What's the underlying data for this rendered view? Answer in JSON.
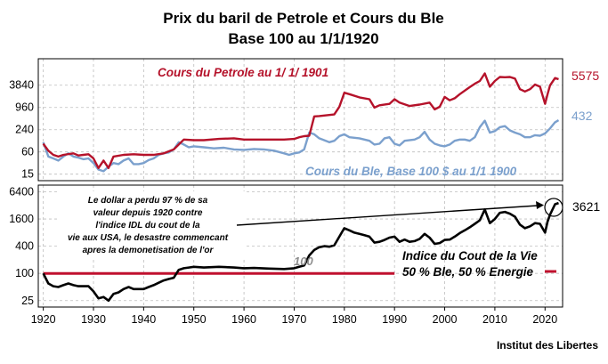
{
  "title_line1": "Prix du baril de Petrole et Cours du Ble",
  "title_line2": "Base 100 au 1/1/1920",
  "credit": "Institut des Libertes",
  "colors": {
    "petrole": "#b5122a",
    "ble": "#7ba0cd",
    "vie": "#000000",
    "ref": "#c0102e"
  },
  "chart_data": [
    {
      "type": "line",
      "yscale": "log",
      "ylim": [
        10,
        20000
      ],
      "xlim": [
        1919,
        2023.5
      ],
      "yticks": [
        "15",
        "60",
        "240",
        "960",
        "3840"
      ],
      "annotations": [
        {
          "id": "petrole",
          "text": "Cours du Petrole au 1/ 1/ 1901"
        },
        {
          "id": "ble",
          "text": "Cours du Ble, Base 100 $ au 1/1 1900"
        }
      ],
      "end_labels": [
        {
          "id": "petrole",
          "text": "5575"
        },
        {
          "id": "ble",
          "text": "432"
        }
      ],
      "series": [
        {
          "id": "petrole",
          "points": [
            [
              1920,
              100
            ],
            [
              1921,
              65
            ],
            [
              1922,
              50
            ],
            [
              1923,
              45
            ],
            [
              1924,
              50
            ],
            [
              1926,
              55
            ],
            [
              1927,
              48
            ],
            [
              1928,
              50
            ],
            [
              1929,
              52
            ],
            [
              1930,
              40
            ],
            [
              1931,
              22
            ],
            [
              1932,
              35
            ],
            [
              1933,
              22
            ],
            [
              1934,
              45
            ],
            [
              1936,
              50
            ],
            [
              1938,
              52
            ],
            [
              1940,
              50
            ],
            [
              1942,
              50
            ],
            [
              1944,
              55
            ],
            [
              1946,
              70
            ],
            [
              1947,
              95
            ],
            [
              1948,
              130
            ],
            [
              1950,
              125
            ],
            [
              1952,
              125
            ],
            [
              1955,
              135
            ],
            [
              1958,
              140
            ],
            [
              1960,
              130
            ],
            [
              1965,
              130
            ],
            [
              1968,
              130
            ],
            [
              1970,
              135
            ],
            [
              1971,
              150
            ],
            [
              1972,
              160
            ],
            [
              1973,
              165
            ],
            [
              1974,
              550
            ],
            [
              1975,
              560
            ],
            [
              1977,
              600
            ],
            [
              1978,
              620
            ],
            [
              1979,
              1000
            ],
            [
              1980,
              2400
            ],
            [
              1981,
              2200
            ],
            [
              1983,
              1800
            ],
            [
              1985,
              1600
            ],
            [
              1986,
              950
            ],
            [
              1987,
              1100
            ],
            [
              1989,
              1200
            ],
            [
              1990,
              1600
            ],
            [
              1991,
              1300
            ],
            [
              1993,
              1050
            ],
            [
              1995,
              1150
            ],
            [
              1997,
              1300
            ],
            [
              1998,
              850
            ],
            [
              1999,
              1000
            ],
            [
              2000,
              1850
            ],
            [
              2001,
              1500
            ],
            [
              2002,
              1700
            ],
            [
              2003,
              2200
            ],
            [
              2005,
              3400
            ],
            [
              2006,
              4200
            ],
            [
              2007,
              5000
            ],
            [
              2008,
              8000
            ],
            [
              2009,
              3500
            ],
            [
              2010,
              5000
            ],
            [
              2011,
              6400
            ],
            [
              2012,
              6300
            ],
            [
              2013,
              6400
            ],
            [
              2014,
              5800
            ],
            [
              2015,
              3000
            ],
            [
              2016,
              2600
            ],
            [
              2017,
              3000
            ],
            [
              2018,
              4000
            ],
            [
              2019,
              3500
            ],
            [
              2020,
              1200
            ],
            [
              2020.5,
              2200
            ],
            [
              2021,
              3800
            ],
            [
              2022,
              6000
            ],
            [
              2022.7,
              5575
            ]
          ]
        },
        {
          "id": "ble",
          "points": [
            [
              1920,
              110
            ],
            [
              1921,
              45
            ],
            [
              1922,
              40
            ],
            [
              1923,
              35
            ],
            [
              1924,
              45
            ],
            [
              1925,
              55
            ],
            [
              1926,
              45
            ],
            [
              1927,
              42
            ],
            [
              1928,
              38
            ],
            [
              1929,
              40
            ],
            [
              1930,
              30
            ],
            [
              1931,
              20
            ],
            [
              1932,
              18
            ],
            [
              1933,
              24
            ],
            [
              1934,
              30
            ],
            [
              1935,
              28
            ],
            [
              1936,
              35
            ],
            [
              1937,
              40
            ],
            [
              1938,
              28
            ],
            [
              1939,
              28
            ],
            [
              1940,
              30
            ],
            [
              1941,
              36
            ],
            [
              1942,
              40
            ],
            [
              1943,
              50
            ],
            [
              1944,
              55
            ],
            [
              1945,
              58
            ],
            [
              1946,
              70
            ],
            [
              1947,
              110
            ],
            [
              1948,
              95
            ],
            [
              1949,
              80
            ],
            [
              1950,
              85
            ],
            [
              1952,
              80
            ],
            [
              1954,
              75
            ],
            [
              1956,
              78
            ],
            [
              1958,
              70
            ],
            [
              1960,
              68
            ],
            [
              1962,
              72
            ],
            [
              1964,
              70
            ],
            [
              1966,
              65
            ],
            [
              1968,
              55
            ],
            [
              1969,
              50
            ],
            [
              1970,
              55
            ],
            [
              1971,
              58
            ],
            [
              1972,
              70
            ],
            [
              1973,
              200
            ],
            [
              1974,
              180
            ],
            [
              1975,
              140
            ],
            [
              1977,
              110
            ],
            [
              1978,
              120
            ],
            [
              1979,
              160
            ],
            [
              1980,
              180
            ],
            [
              1981,
              150
            ],
            [
              1983,
              140
            ],
            [
              1985,
              120
            ],
            [
              1986,
              95
            ],
            [
              1987,
              100
            ],
            [
              1988,
              140
            ],
            [
              1989,
              150
            ],
            [
              1990,
              100
            ],
            [
              1991,
              90
            ],
            [
              1992,
              120
            ],
            [
              1994,
              130
            ],
            [
              1995,
              150
            ],
            [
              1996,
              210
            ],
            [
              1997,
              130
            ],
            [
              1998,
              100
            ],
            [
              1999,
              90
            ],
            [
              2000,
              85
            ],
            [
              2001,
              95
            ],
            [
              2002,
              120
            ],
            [
              2003,
              130
            ],
            [
              2004,
              130
            ],
            [
              2005,
              120
            ],
            [
              2006,
              150
            ],
            [
              2007,
              280
            ],
            [
              2008,
              420
            ],
            [
              2009,
              200
            ],
            [
              2010,
              220
            ],
            [
              2011,
              280
            ],
            [
              2012,
              300
            ],
            [
              2013,
              230
            ],
            [
              2014,
              200
            ],
            [
              2015,
              180
            ],
            [
              2016,
              150
            ],
            [
              2017,
              150
            ],
            [
              2018,
              170
            ],
            [
              2019,
              165
            ],
            [
              2020,
              190
            ],
            [
              2021,
              260
            ],
            [
              2022,
              380
            ],
            [
              2022.7,
              432
            ]
          ]
        }
      ]
    },
    {
      "type": "line",
      "yscale": "log",
      "ylim": [
        18,
        9000
      ],
      "xlim": [
        1919,
        2023.5
      ],
      "yticks": [
        "25",
        "100",
        "400",
        "1600",
        "6400"
      ],
      "xticks": [
        "1920",
        "1930",
        "1940",
        "1950",
        "1960",
        "1970",
        "1980",
        "1990",
        "2000",
        "2010",
        "2020"
      ],
      "note_lines": [
        "Le dollar a perdu 97 % de sa",
        "valeur depuis 1920 contre",
        "l'indice IDL du cout de la",
        "vie aux USA, le desastre commencant",
        "apres la demonetisation  de l'or"
      ],
      "label_100": "100",
      "legend_line1": "Indice du Cout de la Vie",
      "legend_line2": "50 % Ble, 50 % Energie",
      "end_label": "3621",
      "reference_level": 100,
      "series": [
        {
          "id": "vie",
          "points": [
            [
              1920,
              100
            ],
            [
              1921,
              60
            ],
            [
              1922,
              52
            ],
            [
              1923,
              50
            ],
            [
              1924,
              55
            ],
            [
              1925,
              60
            ],
            [
              1926,
              55
            ],
            [
              1927,
              52
            ],
            [
              1928,
              52
            ],
            [
              1929,
              52
            ],
            [
              1930,
              40
            ],
            [
              1931,
              28
            ],
            [
              1932,
              30
            ],
            [
              1933,
              25
            ],
            [
              1934,
              35
            ],
            [
              1935,
              38
            ],
            [
              1936,
              45
            ],
            [
              1937,
              50
            ],
            [
              1938,
              45
            ],
            [
              1939,
              45
            ],
            [
              1940,
              45
            ],
            [
              1941,
              50
            ],
            [
              1942,
              55
            ],
            [
              1943,
              62
            ],
            [
              1944,
              70
            ],
            [
              1945,
              75
            ],
            [
              1946,
              80
            ],
            [
              1947,
              120
            ],
            [
              1948,
              130
            ],
            [
              1949,
              135
            ],
            [
              1950,
              140
            ],
            [
              1952,
              135
            ],
            [
              1955,
              140
            ],
            [
              1958,
              135
            ],
            [
              1960,
              130
            ],
            [
              1962,
              132
            ],
            [
              1965,
              128
            ],
            [
              1968,
              125
            ],
            [
              1970,
              130
            ],
            [
              1971,
              140
            ],
            [
              1972,
              150
            ],
            [
              1973,
              250
            ],
            [
              1974,
              330
            ],
            [
              1975,
              380
            ],
            [
              1976,
              400
            ],
            [
              1977,
              390
            ],
            [
              1978,
              420
            ],
            [
              1979,
              650
            ],
            [
              1980,
              1000
            ],
            [
              1981,
              900
            ],
            [
              1982,
              800
            ],
            [
              1983,
              750
            ],
            [
              1984,
              700
            ],
            [
              1985,
              650
            ],
            [
              1986,
              480
            ],
            [
              1987,
              500
            ],
            [
              1988,
              550
            ],
            [
              1989,
              620
            ],
            [
              1990,
              650
            ],
            [
              1991,
              500
            ],
            [
              1992,
              560
            ],
            [
              1993,
              500
            ],
            [
              1994,
              520
            ],
            [
              1995,
              580
            ],
            [
              1996,
              750
            ],
            [
              1997,
              620
            ],
            [
              1998,
              450
            ],
            [
              1999,
              470
            ],
            [
              2000,
              550
            ],
            [
              2001,
              560
            ],
            [
              2002,
              650
            ],
            [
              2003,
              780
            ],
            [
              2004,
              900
            ],
            [
              2005,
              1050
            ],
            [
              2006,
              1250
            ],
            [
              2007,
              1500
            ],
            [
              2008,
              2600
            ],
            [
              2009,
              1300
            ],
            [
              2010,
              1600
            ],
            [
              2011,
              2200
            ],
            [
              2012,
              2300
            ],
            [
              2013,
              2100
            ],
            [
              2014,
              1800
            ],
            [
              2015,
              1200
            ],
            [
              2016,
              1000
            ],
            [
              2017,
              1100
            ],
            [
              2018,
              1300
            ],
            [
              2019,
              1250
            ],
            [
              2020,
              800
            ],
            [
              2020.5,
              1400
            ],
            [
              2021,
              2000
            ],
            [
              2022,
              3400
            ],
            [
              2022.7,
              3621
            ]
          ]
        }
      ]
    }
  ]
}
